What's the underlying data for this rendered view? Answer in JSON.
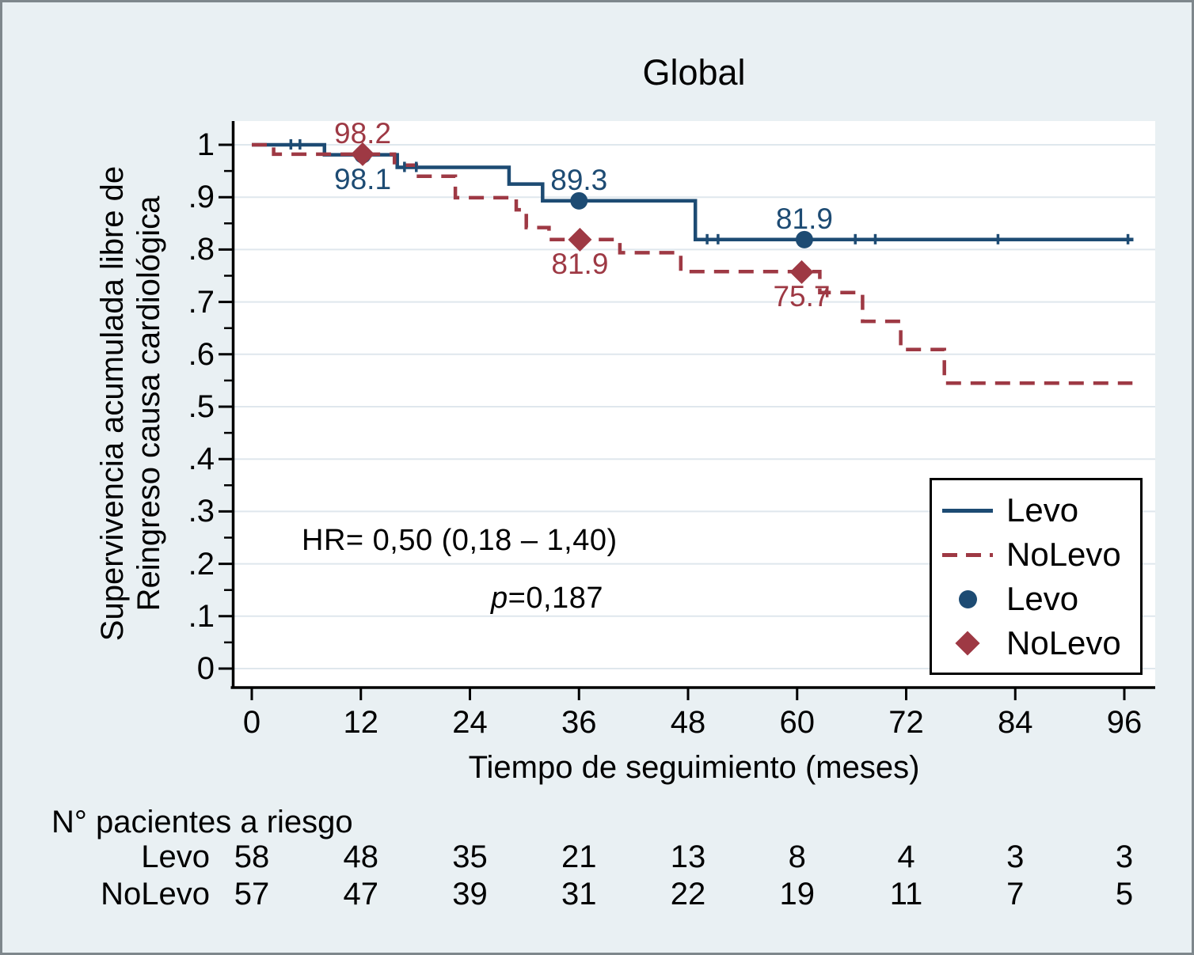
{
  "title": "Global",
  "colors": {
    "levo": "#1d4b73",
    "nolevo": "#9e3944",
    "canvas_bg": "#e9f0f3",
    "plot_bg": "#ffffff",
    "grid": "#dfe7ed",
    "axis": "#000000",
    "border": "#7e878c",
    "legend_bg": "#ffffff",
    "legend_border": "#000000"
  },
  "y_axis": {
    "title_line1": "Supervivencia acumulada libre de",
    "title_line2": "Reingreso causa cardiológica",
    "tick_labels": [
      "1",
      ".9",
      ".8",
      ".7",
      ".6",
      ".5",
      ".4",
      ".3",
      ".2",
      ".1",
      "0"
    ],
    "tick_values": [
      1,
      0.9,
      0.8,
      0.7,
      0.6,
      0.5,
      0.4,
      0.3,
      0.2,
      0.1,
      0
    ]
  },
  "x_axis": {
    "title": "Tiempo de seguimiento (meses)",
    "tick_values": [
      0,
      12,
      24,
      36,
      48,
      60,
      72,
      84,
      96
    ]
  },
  "annotations": {
    "hr": "HR= 0,50  (0,18 – 1,40)",
    "p_italic": "p",
    "p_rest": "=0,187"
  },
  "legend": {
    "items": [
      {
        "label": "Levo",
        "swatch": "solid-line",
        "color_key": "levo"
      },
      {
        "label": "NoLevo",
        "swatch": "dashed-line",
        "color_key": "nolevo"
      },
      {
        "label": "Levo",
        "swatch": "circle",
        "color_key": "levo"
      },
      {
        "label": "NoLevo",
        "swatch": "diamond",
        "color_key": "nolevo"
      }
    ]
  },
  "risk_table": {
    "header": "N° pacientes a riesgo",
    "rows": [
      {
        "label": "Levo",
        "values": [
          "58",
          "48",
          "35",
          "21",
          "13",
          "8",
          "4",
          "3",
          "3"
        ]
      },
      {
        "label": "NoLevo",
        "values": [
          "57",
          "47",
          "39",
          "31",
          "22",
          "19",
          "11",
          "7",
          "5"
        ]
      }
    ]
  },
  "chart_data": {
    "type": "line",
    "subtype": "kaplan-meier-step",
    "title": "Global",
    "xlabel": "Tiempo de seguimiento (meses)",
    "ylabel": "Supervivencia acumulada libre de Reingreso causa cardiológica",
    "xlim": [
      0,
      96
    ],
    "ylim": [
      0,
      1
    ],
    "x_ticks": [
      0,
      12,
      24,
      36,
      48,
      60,
      72,
      84,
      96
    ],
    "y_ticks": [
      0,
      0.1,
      0.2,
      0.3,
      0.4,
      0.5,
      0.6,
      0.7,
      0.8,
      0.9,
      1
    ],
    "grid": "horizontal",
    "legend_position": "inside-right",
    "hr_annotation": "HR= 0,50 (0,18 – 1,40)",
    "p_annotation": "p=0,187",
    "series": [
      {
        "name": "Levo",
        "line": "solid",
        "color": "#1d4b73",
        "steps": [
          [
            0,
            1
          ],
          [
            8,
            0.981
          ],
          [
            16,
            0.957
          ],
          [
            28.3,
            0.925
          ],
          [
            32,
            0.893
          ],
          [
            48.8,
            0.819
          ],
          [
            97,
            0.819
          ]
        ],
        "censor_marks": [
          [
            4.3,
            1
          ],
          [
            5.3,
            1
          ],
          [
            16.8,
            0.957
          ],
          [
            18.1,
            0.957
          ],
          [
            50.1,
            0.819
          ],
          [
            51.3,
            0.819
          ],
          [
            66.4,
            0.819
          ],
          [
            68.6,
            0.819
          ],
          [
            82.1,
            0.819
          ],
          [
            96.4,
            0.819
          ]
        ],
        "markers": [
          {
            "month": 12,
            "t": 12.2,
            "v": 0.981,
            "survival_pct": "98.1",
            "shape": "circle",
            "label_pos": "below"
          },
          {
            "month": 36,
            "t": 36.0,
            "v": 0.893,
            "survival_pct": "89.3",
            "shape": "circle",
            "label_pos": "above"
          },
          {
            "month": 60,
            "t": 60.8,
            "v": 0.819,
            "survival_pct": "81.9",
            "shape": "circle",
            "label_pos": "above"
          }
        ],
        "n_at_risk": [
          58,
          48,
          35,
          21,
          13,
          8,
          4,
          3,
          3
        ]
      },
      {
        "name": "NoLevo",
        "line": "dashed",
        "color": "#9e3944",
        "steps": [
          [
            0,
            1
          ],
          [
            2.4,
            0.982
          ],
          [
            15.7,
            0.961
          ],
          [
            18.1,
            0.94
          ],
          [
            22.4,
            0.899
          ],
          [
            29.1,
            0.876
          ],
          [
            30.2,
            0.842
          ],
          [
            32.7,
            0.819
          ],
          [
            40.5,
            0.794
          ],
          [
            47.2,
            0.758
          ],
          [
            62.5,
            0.718
          ],
          [
            67.2,
            0.663
          ],
          [
            71.4,
            0.609
          ],
          [
            76.2,
            0.545
          ],
          [
            96.9,
            0.545
          ]
        ],
        "censor_marks": [
          [
            63.3,
            0.718
          ]
        ],
        "markers": [
          {
            "month": 12,
            "t": 12.2,
            "v": 0.982,
            "survival_pct": "98.2",
            "shape": "diamond",
            "label_pos": "above"
          },
          {
            "month": 36,
            "t": 36.1,
            "v": 0.819,
            "survival_pct": "81.9",
            "shape": "diamond",
            "label_pos": "below"
          },
          {
            "month": 60,
            "t": 60.5,
            "v": 0.757,
            "survival_pct": "75.7",
            "shape": "diamond",
            "label_pos": "below"
          }
        ],
        "n_at_risk": [
          57,
          47,
          39,
          31,
          22,
          19,
          11,
          7,
          5
        ]
      }
    ]
  }
}
